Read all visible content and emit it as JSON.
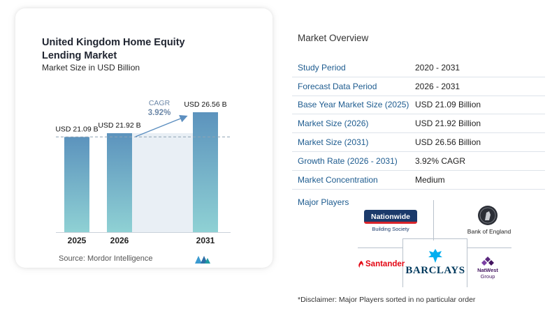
{
  "chart": {
    "title": "United Kingdom Home Equity Lending Market",
    "subtitle": "Market Size in USD Billion",
    "source": "Source:  Mordor Intelligence",
    "cagr_label": "CAGR",
    "cagr_value": "3.92%"
  },
  "chart_data": {
    "type": "bar",
    "title": "United Kingdom Home Equity Lending Market",
    "subtitle": "Market Size in USD Billion",
    "categories": [
      "2025",
      "2026",
      "2031"
    ],
    "values": [
      21.09,
      21.92,
      26.56
    ],
    "data_labels": [
      "USD 21.09 B",
      "USD 21.92 B",
      "USD 26.56 B"
    ],
    "annotation": "CAGR 3.92%",
    "colors": {
      "bar_top": "#5c93bd",
      "bar_bottom": "#8fd1d4",
      "highlight": "#e9eff5",
      "arrow": "#5d8fc0",
      "cagr_text": "#6d88a8"
    }
  },
  "overview": {
    "title": "Market Overview",
    "rows": [
      {
        "label": "Study Period",
        "value": "2020 - 2031"
      },
      {
        "label": "Forecast Data Period",
        "value": "2026 - 2031"
      },
      {
        "label": "Base Year Market Size (2025)",
        "value": "USD 21.09 Billion"
      },
      {
        "label": "Market Size (2026)",
        "value": "USD 21.92 Billion"
      },
      {
        "label": "Market Size (2031)",
        "value": "USD 26.56 Billion"
      },
      {
        "label": "Growth Rate (2026 - 2031)",
        "value": "3.92% CAGR"
      },
      {
        "label": "Market Concentration",
        "value": "Medium"
      }
    ]
  },
  "players": {
    "title": "Major Players",
    "logos": {
      "nationwide": {
        "name": "Nationwide",
        "sub": "Building Society"
      },
      "boe": {
        "name": "Bank of England"
      },
      "santander": {
        "name": "Santander"
      },
      "barclays": {
        "name": "BARCLAYS"
      },
      "natwest": {
        "name": "NatWest",
        "sub": "Group"
      }
    }
  },
  "disclaimer": "*Disclaimer: Major Players sorted in no particular order"
}
